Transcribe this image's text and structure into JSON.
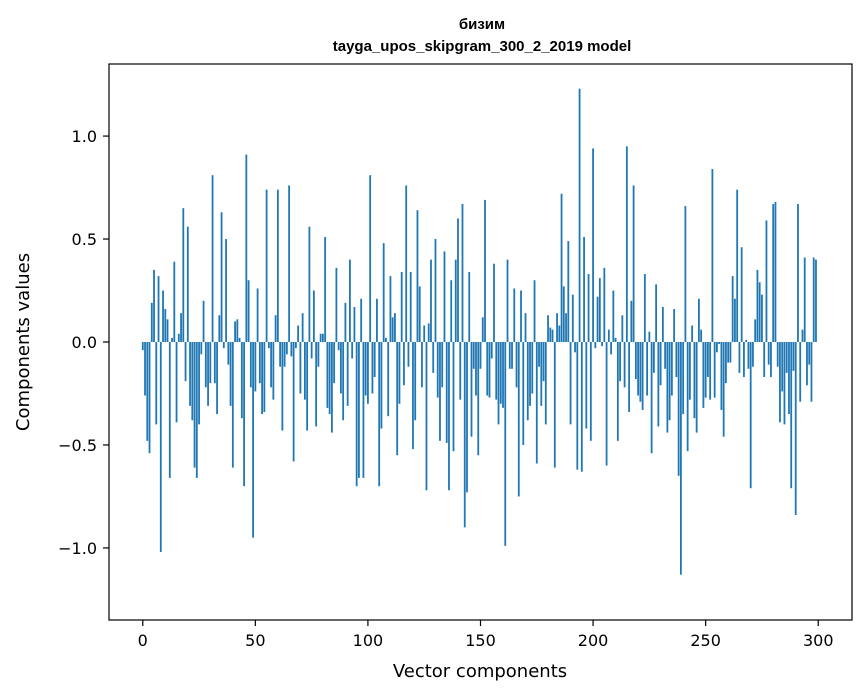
{
  "chart_data": {
    "type": "bar",
    "title": "бизим",
    "subtitle": "tayga_upos_skipgram_300_2_2019 model",
    "xlabel": "Vector components",
    "ylabel": "Components values",
    "xlim": [
      -15,
      315
    ],
    "ylim": [
      -1.35,
      1.35
    ],
    "xticks": [
      0,
      50,
      100,
      150,
      200,
      250,
      300
    ],
    "xtick_labels": [
      "0",
      "50",
      "100",
      "150",
      "200",
      "250",
      "300"
    ],
    "yticks": [
      -1.0,
      -0.5,
      0.0,
      0.5,
      1.0
    ],
    "ytick_labels": [
      "−1.0",
      "−0.5",
      "0.0",
      "0.5",
      "1.0"
    ],
    "grid": false,
    "bar_color": "#1f77b4",
    "values": [
      -0.04,
      -0.26,
      -0.48,
      -0.54,
      0.19,
      0.35,
      -0.4,
      0.32,
      -1.02,
      0.25,
      0.16,
      0.11,
      -0.66,
      0.02,
      0.39,
      -0.39,
      0.04,
      0.14,
      0.65,
      -0.19,
      0.56,
      -0.31,
      -0.38,
      -0.61,
      -0.66,
      -0.4,
      -0.06,
      0.2,
      -0.22,
      -0.31,
      -0.2,
      0.81,
      -0.2,
      -0.35,
      0.13,
      0.63,
      -0.03,
      0.5,
      -0.11,
      -0.31,
      -0.61,
      0.1,
      0.11,
      0.02,
      -0.37,
      -0.7,
      0.91,
      0.3,
      -0.22,
      -0.95,
      -0.24,
      0.26,
      -0.2,
      -0.35,
      -0.34,
      0.74,
      -0.03,
      -0.22,
      -0.28,
      0.13,
      0.74,
      -0.12,
      -0.43,
      -0.12,
      -0.06,
      0.76,
      -0.07,
      -0.58,
      -0.03,
      0.08,
      -0.25,
      0.14,
      -0.28,
      -0.43,
      0.56,
      -0.08,
      0.25,
      -0.41,
      -0.12,
      0.04,
      0.04,
      0.51,
      -0.32,
      -0.35,
      -0.44,
      -0.2,
      0.36,
      -0.04,
      -0.25,
      -0.38,
      0.19,
      -0.31,
      0.4,
      -0.08,
      0.17,
      -0.7,
      -0.66,
      0.21,
      -0.66,
      -0.26,
      -0.3,
      0.81,
      -0.25,
      -0.17,
      0.21,
      -0.7,
      -0.42,
      0.48,
      0.02,
      -0.36,
      0.32,
      0.12,
      0.14,
      -0.55,
      -0.3,
      0.34,
      -0.21,
      0.76,
      -0.12,
      0.34,
      -0.52,
      -0.38,
      0.64,
      0.27,
      -0.22,
      0.08,
      -0.72,
      0.09,
      0.4,
      -0.15,
      0.5,
      -0.27,
      -0.48,
      -0.22,
      0.44,
      -0.49,
      -0.72,
      0.3,
      -0.53,
      0.4,
      0.6,
      -0.28,
      0.67,
      -0.9,
      -0.73,
      0.34,
      -0.46,
      -0.13,
      -0.26,
      -0.55,
      -0.13,
      0.12,
      0.69,
      -0.26,
      -0.27,
      -0.08,
      0.38,
      -0.28,
      -0.4,
      -0.3,
      -0.32,
      -0.99,
      0.4,
      -0.13,
      -0.13,
      0.26,
      -0.22,
      -0.75,
      0.25,
      -0.5,
      0.14,
      -0.38,
      -0.31,
      -0.25,
      0.3,
      -0.59,
      -0.12,
      -0.31,
      -0.19,
      -0.4,
      0.13,
      0.07,
      0.06,
      -0.61,
      0.14,
      0.08,
      0.72,
      0.27,
      0.14,
      0.49,
      -0.4,
      0.23,
      -0.05,
      -0.62,
      1.23,
      -0.63,
      0.51,
      -0.42,
      0.33,
      -0.48,
      0.94,
      -0.03,
      0.22,
      0.31,
      -0.02,
      0.36,
      -0.6,
      0.06,
      -0.06,
      0.25,
      0.02,
      -0.48,
      -0.19,
      0.13,
      -0.22,
      0.95,
      -0.34,
      0.2,
      0.76,
      -0.18,
      -0.26,
      -0.29,
      -0.33,
      0.33,
      -0.26,
      0.05,
      -0.54,
      -0.15,
      0.28,
      -0.41,
      -0.21,
      0.17,
      -0.13,
      -0.44,
      -0.38,
      -0.26,
      0.16,
      -0.17,
      -0.65,
      -1.13,
      -0.35,
      0.66,
      -0.53,
      -0.28,
      0.08,
      -0.37,
      -0.44,
      0.21,
      0.06,
      -0.32,
      -0.27,
      -0.17,
      -0.28,
      0.84,
      -0.27,
      -0.05,
      -0.01,
      -0.33,
      -0.46,
      -0.2,
      -0.1,
      -0.1,
      0.32,
      0.21,
      0.74,
      -0.15,
      0.46,
      -0.17,
      0.01,
      -0.13,
      -0.71,
      -0.12,
      0.11,
      0.35,
      0.29,
      0.23,
      -0.17,
      0.59,
      -0.11,
      -0.17,
      0.67,
      0.68,
      -0.12,
      -0.39,
      -0.24,
      -0.4,
      -0.15,
      -0.35,
      -0.71,
      -0.14,
      -0.84,
      0.67,
      -0.29,
      0.06,
      0.41,
      -0.21,
      -0.11,
      -0.29,
      0.41,
      0.4
    ]
  }
}
